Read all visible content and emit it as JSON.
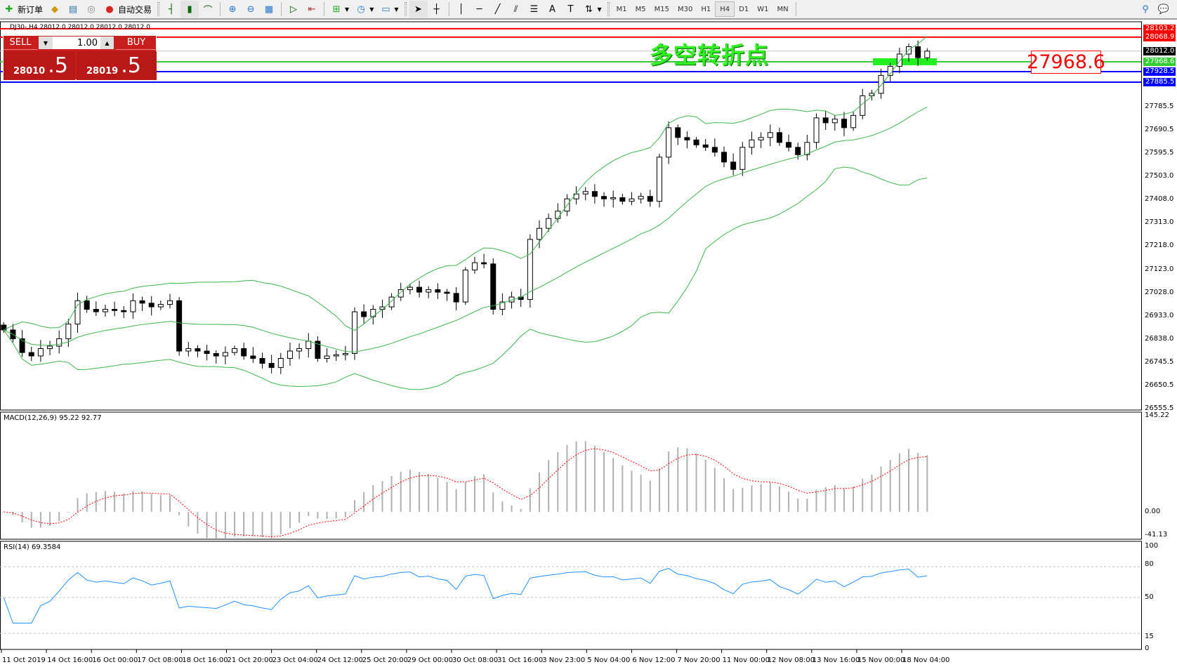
{
  "toolbar": {
    "new_order": "新订单",
    "auto_trading": "自动交易",
    "timeframes": [
      "M1",
      "M5",
      "M15",
      "M30",
      "H1",
      "H4",
      "D1",
      "W1",
      "MN"
    ],
    "active_timeframe": "H4"
  },
  "chart": {
    "symbol_info": "DJ30-,H4  28012.0 28012.0 28012.0 28012.0",
    "annotation": "多空转折点",
    "price_label": "27968.6",
    "price_axis": [
      "27785.5",
      "27690.5",
      "27595.5",
      "27503.0",
      "27408.0",
      "27313.0",
      "27218.0",
      "27123.0",
      "27028.0",
      "26933.0",
      "26838.0",
      "26745.5",
      "26650.5",
      "26555.5"
    ],
    "levels": [
      {
        "price": "28103.2",
        "color": "#ff0000"
      },
      {
        "price": "28068.9",
        "color": "#ff0000"
      },
      {
        "price": "28012.0",
        "color": "#000000",
        "line": "#c0c0c0"
      },
      {
        "price": "27968.6",
        "color": "#33cc33"
      },
      {
        "price": "27928.5",
        "color": "#0000ff"
      },
      {
        "price": "27885.5",
        "color": "#0000ff"
      }
    ],
    "closes": [
      26876,
      26840,
      26784,
      26770,
      26800,
      26810,
      26840,
      26900,
      26995,
      26960,
      26950,
      26960,
      26955,
      26950,
      26995,
      26985,
      26970,
      26980,
      26995,
      26790,
      26800,
      26790,
      26780,
      26770,
      26784,
      26800,
      26770,
      26760,
      26740,
      26723,
      26760,
      26790,
      26800,
      26830,
      26760,
      26770,
      26775,
      26780,
      26950,
      26930,
      26960,
      26970,
      27010,
      27040,
      27050,
      27030,
      27040,
      27030,
      27025,
      26990,
      27120,
      27150,
      27145,
      26960,
      26990,
      27010,
      27000,
      27245,
      27290,
      27330,
      27360,
      27410,
      27430,
      27440,
      27420,
      27410,
      27415,
      27400,
      27410,
      27420,
      27400,
      27580,
      27700,
      27660,
      27650,
      27630,
      27620,
      27600,
      27560,
      27530,
      27620,
      27650,
      27660,
      27680,
      27640,
      27620,
      27590,
      27640,
      27740,
      27720,
      27735,
      27700,
      27750,
      27830,
      27840,
      27913,
      27950,
      28000,
      28030,
      27985,
      28012
    ],
    "time_axis": [
      "11 Oct 2019",
      "14 Oct 16:00",
      "16 Oct 00:00",
      "17 Oct 08:00",
      "18 Oct 16:00",
      "21 Oct 20:00",
      "23 Oct 04:00",
      "24 Oct 12:00",
      "25 Oct 20:00",
      "29 Oct 00:00",
      "30 Oct 08:00",
      "31 Oct 16:00",
      "3 Nov 23:00",
      "5 Nov 04:00",
      "6 Nov 12:00",
      "7 Nov 20:00",
      "11 Nov 00:00",
      "12 Nov 08:00",
      "13 Nov 16:00",
      "15 Nov 00:00",
      "18 Nov 04:00"
    ]
  },
  "trade_panel": {
    "sell": "SELL",
    "buy": "BUY",
    "lot": "1.00",
    "bid_main": "28010",
    "bid_frac": ".5",
    "ask_main": "28019",
    "ask_frac": ".5",
    "color": "#c81e1e"
  },
  "macd": {
    "label": "MACD(12,26,9) 95.22 92.77",
    "axis": [
      "145.22",
      "0.00",
      "-41.13"
    ]
  },
  "rsi": {
    "label": "RSI(14) 69.3584",
    "axis": [
      "100",
      "80",
      "50",
      "15",
      "0"
    ],
    "color": "#1e90ff"
  }
}
